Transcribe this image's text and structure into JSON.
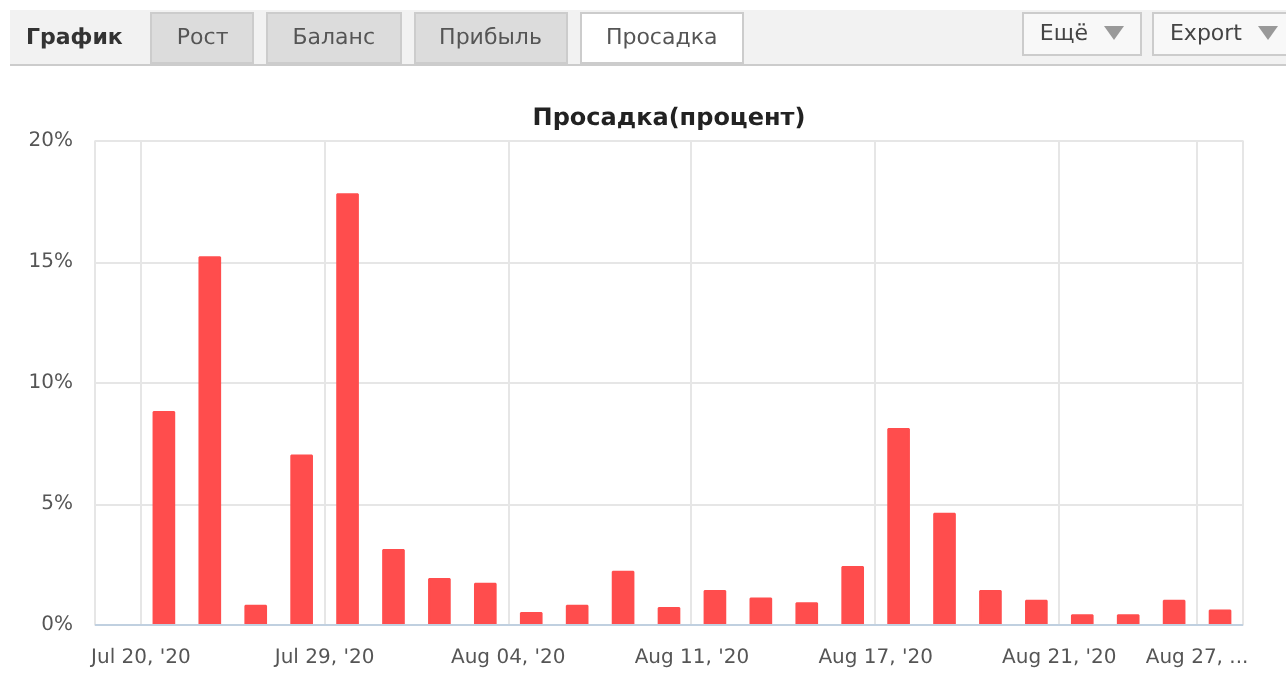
{
  "chart_data": {
    "type": "bar",
    "title": "Просадка(процент)",
    "annotations": [
      "График",
      "Рост",
      "Баланс",
      "Прибыль",
      "Просадка",
      "Ещё",
      "Export"
    ],
    "categories": [
      "Jul 20, '20",
      null,
      null,
      null,
      "Jul 29, '20",
      null,
      null,
      null,
      "Aug 04, '20",
      null,
      null,
      null,
      "Aug 11, '20",
      null,
      null,
      null,
      "Aug 17, '20",
      null,
      null,
      null,
      "Aug 21, '20",
      null,
      null,
      "Aug 27, ..."
    ],
    "values": [
      8.8,
      15.2,
      0.8,
      7.0,
      17.8,
      3.1,
      1.9,
      1.7,
      0.5,
      0.8,
      2.2,
      0.7,
      1.4,
      1.1,
      0.9,
      2.4,
      8.1,
      4.6,
      1.4,
      1.0,
      0.4,
      0.4,
      1.0,
      0.6
    ],
    "color": "#ff4d4d",
    "ylim": [
      0,
      20
    ],
    "yticks": [
      {
        "value": 0,
        "label": "0%"
      },
      {
        "value": 5,
        "label": "5%"
      },
      {
        "value": 10,
        "label": "10%"
      },
      {
        "value": 15,
        "label": "15%"
      },
      {
        "value": 20,
        "label": "20%"
      }
    ],
    "grid": true
  }
}
